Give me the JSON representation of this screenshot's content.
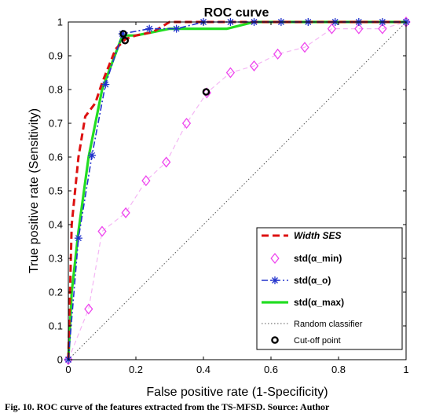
{
  "caption": "Fig. 10. ROC curve of the features extracted from the TS-MFSD. Source: Author",
  "chart_data": {
    "type": "line",
    "title": "ROC curve",
    "xlabel": "False positive rate (1-Specificity)",
    "ylabel": "True positive rate (Sensitivity)",
    "xlim": [
      0,
      1
    ],
    "ylim": [
      0,
      1
    ],
    "xticks": [
      "0",
      "0.2",
      "0.4",
      "0.6",
      "0.8",
      "1"
    ],
    "yticks": [
      "0",
      "0.1",
      "0.2",
      "0.3",
      "0.4",
      "0.5",
      "0.6",
      "0.7",
      "0.8",
      "0.9",
      "1"
    ],
    "grid": false,
    "legend_position": "bottom-right",
    "series": [
      {
        "name": "Width SES",
        "color": "#dd1111",
        "style": "dashed",
        "x": [
          0,
          0.01,
          0.03,
          0.05,
          0.08,
          0.1,
          0.12,
          0.14,
          0.17,
          0.2,
          0.25,
          0.3,
          0.4,
          0.5,
          0.6,
          0.7,
          0.8,
          0.9,
          1
        ],
        "y": [
          0,
          0.4,
          0.6,
          0.72,
          0.76,
          0.82,
          0.87,
          0.92,
          0.95,
          0.96,
          0.97,
          1,
          1,
          1,
          1,
          1,
          1,
          1,
          1
        ]
      },
      {
        "name": "std(α_min)",
        "color": "#ee44ee",
        "style": "dashed-diamond",
        "x": [
          0,
          0.06,
          0.1,
          0.17,
          0.23,
          0.29,
          0.35,
          0.41,
          0.48,
          0.55,
          0.62,
          0.7,
          0.78,
          0.86,
          0.93,
          1
        ],
        "y": [
          0,
          0.15,
          0.38,
          0.435,
          0.53,
          0.585,
          0.7,
          0.79,
          0.85,
          0.87,
          0.905,
          0.925,
          0.98,
          0.98,
          0.98,
          1
        ]
      },
      {
        "name": "std(α_o)",
        "color": "#2233cc",
        "style": "dashdot-star",
        "x": [
          0,
          0.03,
          0.07,
          0.11,
          0.16,
          0.24,
          0.32,
          0.4,
          0.48,
          0.55,
          0.63,
          0.71,
          0.79,
          0.86,
          0.93,
          1
        ],
        "y": [
          0,
          0.36,
          0.605,
          0.815,
          0.965,
          0.98,
          0.98,
          1,
          1,
          1,
          1,
          1,
          1,
          1,
          1,
          1
        ]
      },
      {
        "name": "std(α_max)",
        "color": "#22dd22",
        "style": "solid",
        "x": [
          0,
          0.01,
          0.03,
          0.06,
          0.1,
          0.13,
          0.16,
          0.2,
          0.25,
          0.3,
          0.35,
          0.47,
          0.55,
          0.7,
          0.85,
          1
        ],
        "y": [
          0,
          0.2,
          0.38,
          0.6,
          0.8,
          0.88,
          0.96,
          0.96,
          0.97,
          0.98,
          0.98,
          0.98,
          1,
          1,
          1,
          1
        ]
      },
      {
        "name": "Random classifier",
        "color": "#555555",
        "style": "dotted",
        "x": [
          0,
          1
        ],
        "y": [
          0,
          1
        ]
      }
    ],
    "cutoff_points": {
      "name": "Cut-off point",
      "x": [
        0.163,
        0.168,
        0.408
      ],
      "y": [
        0.965,
        0.945,
        0.793
      ]
    },
    "legend": [
      {
        "label": "Width SES"
      },
      {
        "label": "std(α_min)"
      },
      {
        "label": "std(α_o)"
      },
      {
        "label": "std(α_max)"
      },
      {
        "label": "Random classifier"
      },
      {
        "label": "Cut-off point"
      }
    ]
  }
}
